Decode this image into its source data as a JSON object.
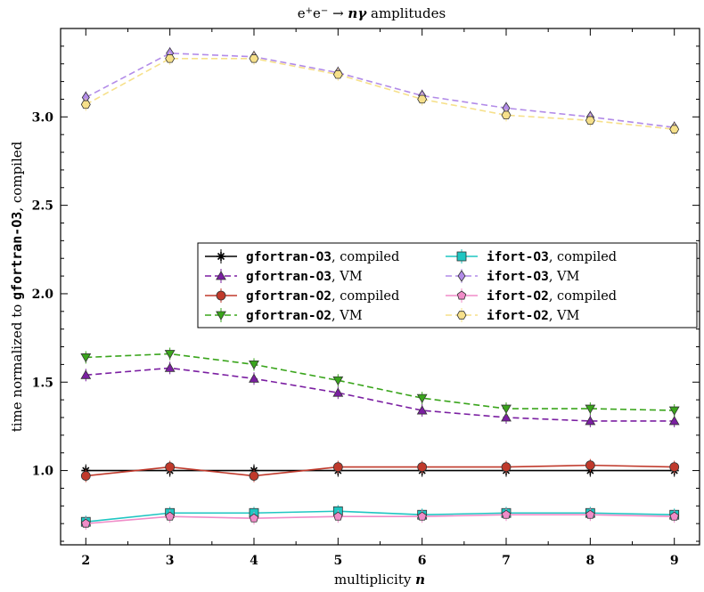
{
  "chart_data": {
    "type": "line",
    "title": "e⁺e⁻ → nγ amplitudes",
    "xlabel": "multiplicity n",
    "ylabel": "time normalized to gfortran-O3, compiled",
    "ylabel_mono": "gfortran-O3",
    "x": [
      2,
      3,
      4,
      5,
      6,
      7,
      8,
      9
    ],
    "xlim": [
      1.7,
      9.3
    ],
    "ylim": [
      0.58,
      3.5
    ],
    "yticks": [
      1.0,
      1.5,
      2.0,
      2.5,
      3.0
    ],
    "ytick_labels": [
      "1.0",
      "1.5",
      "2.0",
      "2.5",
      "3.0"
    ],
    "xticks": [
      2,
      3,
      4,
      5,
      6,
      7,
      8,
      9
    ],
    "xtick_labels": [
      "2",
      "3",
      "4",
      "5",
      "6",
      "7",
      "8",
      "9"
    ],
    "legend_position": "center-right",
    "grid": false,
    "series": [
      {
        "name": "gfortran-O3, compiled",
        "compiler": "gfortran-O3",
        "mode": ", compiled",
        "color": "#000000",
        "dash": "solid",
        "marker": "star",
        "values": [
          1.0,
          1.0,
          1.0,
          1.0,
          1.0,
          1.0,
          1.0,
          1.0
        ]
      },
      {
        "name": "gfortran-O3, VM",
        "compiler": "gfortran-O3",
        "mode": ", VM",
        "color": "#7b1fa2",
        "dash": "dashed",
        "marker": "triangle-up",
        "values": [
          1.54,
          1.58,
          1.52,
          1.44,
          1.34,
          1.3,
          1.28,
          1.28
        ]
      },
      {
        "name": "gfortran-O2, compiled",
        "compiler": "gfortran-O2",
        "mode": ", compiled",
        "color": "#c0392b",
        "dash": "solid",
        "marker": "circle",
        "values": [
          0.97,
          1.02,
          0.97,
          1.02,
          1.02,
          1.02,
          1.03,
          1.02
        ]
      },
      {
        "name": "gfortran-O2, VM",
        "compiler": "gfortran-O2",
        "mode": ", VM",
        "color": "#3aa51c",
        "dash": "dashed",
        "marker": "triangle-down",
        "values": [
          1.64,
          1.66,
          1.6,
          1.51,
          1.41,
          1.35,
          1.35,
          1.34
        ]
      },
      {
        "name": "ifort-O3, compiled",
        "compiler": "ifort-O3",
        "mode": ", compiled",
        "color": "#1fc6c2",
        "dash": "solid",
        "marker": "square",
        "values": [
          0.71,
          0.76,
          0.76,
          0.77,
          0.75,
          0.76,
          0.76,
          0.75
        ]
      },
      {
        "name": "ifort-O3, VM",
        "compiler": "ifort-O3",
        "mode": ", VM",
        "color": "#b28be8",
        "dash": "dashed",
        "marker": "diamond",
        "values": [
          3.11,
          3.36,
          3.34,
          3.25,
          3.12,
          3.05,
          3.0,
          2.94
        ]
      },
      {
        "name": "ifort-O2, compiled",
        "compiler": "ifort-O2",
        "mode": ", compiled",
        "color": "#f08cc8",
        "dash": "solid",
        "marker": "pentagon",
        "values": [
          0.7,
          0.74,
          0.73,
          0.74,
          0.74,
          0.75,
          0.75,
          0.74
        ]
      },
      {
        "name": "ifort-O2, VM",
        "compiler": "ifort-O2",
        "mode": ", VM",
        "color": "#f6e08a",
        "dash": "dashed",
        "marker": "hexagon",
        "values": [
          3.07,
          3.33,
          3.33,
          3.24,
          3.1,
          3.01,
          2.98,
          2.93
        ]
      }
    ]
  }
}
